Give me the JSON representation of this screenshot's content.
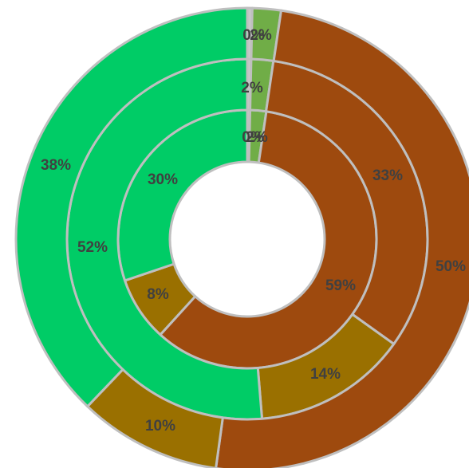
{
  "chart_data": {
    "type": "donut",
    "rings_order": "inner-to-outer",
    "category_colors": [
      "#c8c8c8",
      "#70ad47",
      "#9e4a0e",
      "#9a7000",
      "#00cc66"
    ],
    "series": [
      {
        "values": [
          0,
          2,
          59,
          8,
          30
        ],
        "labels": [
          "0%",
          "2%",
          "59%",
          "8%",
          "30%"
        ]
      },
      {
        "values": [
          0,
          2,
          33,
          14,
          52
        ],
        "labels": [
          "",
          "2%",
          "33%",
          "14%",
          "52%"
        ]
      },
      {
        "values": [
          0,
          2,
          50,
          10,
          38
        ],
        "labels": [
          "0%",
          "2%",
          "50%",
          "10%",
          "38%"
        ]
      }
    ],
    "legend": "none",
    "title": ""
  }
}
